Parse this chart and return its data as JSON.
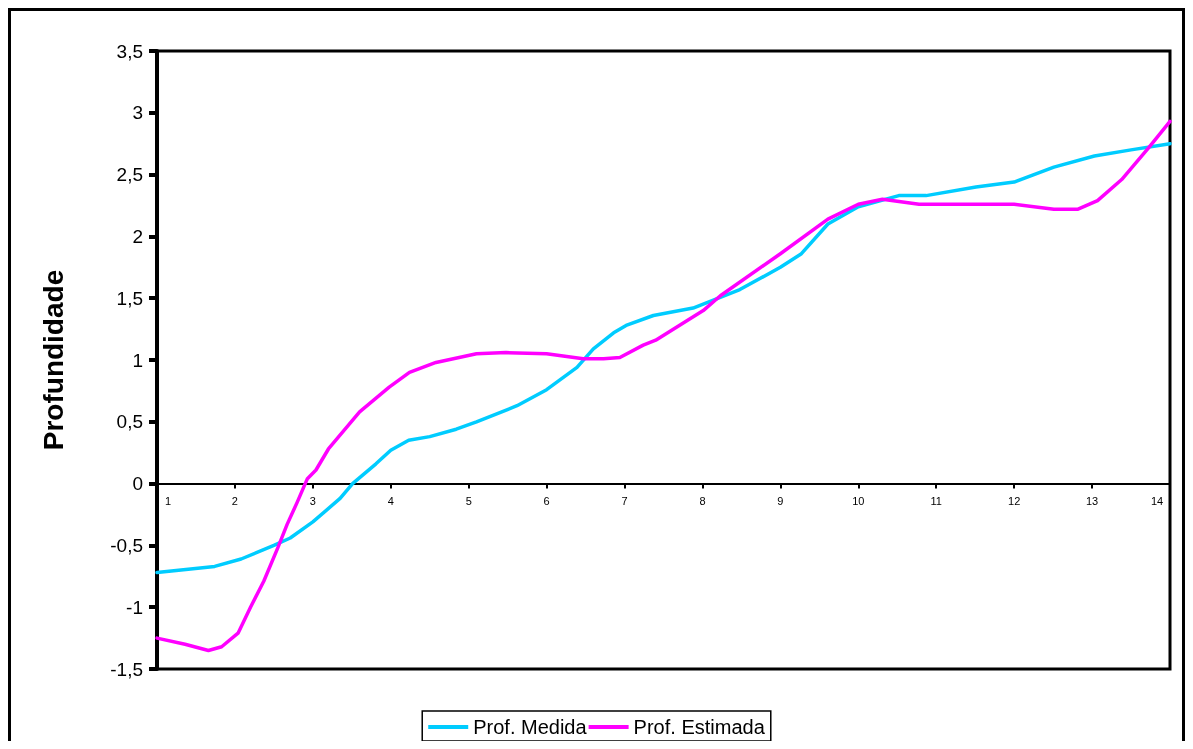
{
  "chart_data": {
    "type": "line",
    "ylabel": "Profundidade",
    "xlim": [
      1,
      14
    ],
    "xticks": [
      1,
      2,
      3,
      4,
      5,
      6,
      7,
      8,
      9,
      10,
      11,
      12,
      13,
      14
    ],
    "ylim": [
      -1.5,
      3.5
    ],
    "yticks": [
      {
        "value": -1.5,
        "label": "-1,5"
      },
      -1,
      {
        "value": -0.5,
        "label": "-0,5"
      },
      0,
      {
        "value": 0.5,
        "label": "0,5"
      },
      1,
      {
        "value": 1.5,
        "label": "1,5"
      },
      2,
      {
        "value": 2.5,
        "label": "2,5"
      },
      3,
      {
        "value": 3.5,
        "label": "3,5"
      }
    ],
    "grid": false,
    "legend": "bottom",
    "marker": "none",
    "line_style": "solid",
    "series": [
      {
        "name": "Prof. Medida",
        "color": "#00ccff",
        "x": [
          1,
          1.74,
          2.08,
          2.5,
          2.71,
          3.0,
          3.35,
          3.51,
          3.81,
          4.0,
          4.23,
          4.5,
          4.84,
          5.1,
          5.62,
          6.0,
          6.39,
          6.6,
          6.86,
          7.02,
          7.37,
          7.88,
          8.48,
          9.0,
          9.27,
          9.61,
          10.0,
          10.52,
          10.87,
          11.51,
          12.0,
          12.51,
          13.03,
          13.5,
          14.0
        ],
        "values": [
          -0.72,
          -0.67,
          -0.61,
          -0.5,
          -0.44,
          -0.31,
          -0.12,
          0.0,
          0.16,
          0.27,
          0.35,
          0.38,
          0.44,
          0.5,
          0.63,
          0.76,
          0.94,
          1.09,
          1.22,
          1.28,
          1.36,
          1.42,
          1.57,
          1.75,
          1.86,
          2.1,
          2.24,
          2.33,
          2.33,
          2.4,
          2.44,
          2.56,
          2.65,
          2.7,
          2.75
        ]
      },
      {
        "name": "Prof. Estimada",
        "color": "#ff00ff",
        "x": [
          1,
          1.36,
          1.66,
          1.83,
          2.04,
          2.2,
          2.37,
          2.55,
          2.67,
          2.8,
          2.93,
          3.04,
          3.2,
          3.6,
          3.98,
          4.24,
          4.58,
          5.1,
          5.48,
          6.0,
          6.47,
          6.73,
          6.94,
          7.24,
          7.4,
          8.01,
          8.23,
          9.0,
          9.61,
          10.0,
          10.31,
          10.78,
          12.0,
          12.51,
          12.82,
          13.07,
          13.38,
          13.73,
          14.0
        ],
        "values": [
          -1.25,
          -1.3,
          -1.35,
          -1.32,
          -1.21,
          -1.0,
          -0.79,
          -0.52,
          -0.33,
          -0.15,
          0.04,
          0.11,
          0.28,
          0.58,
          0.78,
          0.9,
          0.98,
          1.05,
          1.06,
          1.05,
          1.01,
          1.01,
          1.02,
          1.12,
          1.16,
          1.4,
          1.52,
          1.86,
          2.14,
          2.26,
          2.3,
          2.26,
          2.26,
          2.22,
          2.22,
          2.29,
          2.46,
          2.72,
          2.93
        ]
      }
    ]
  }
}
